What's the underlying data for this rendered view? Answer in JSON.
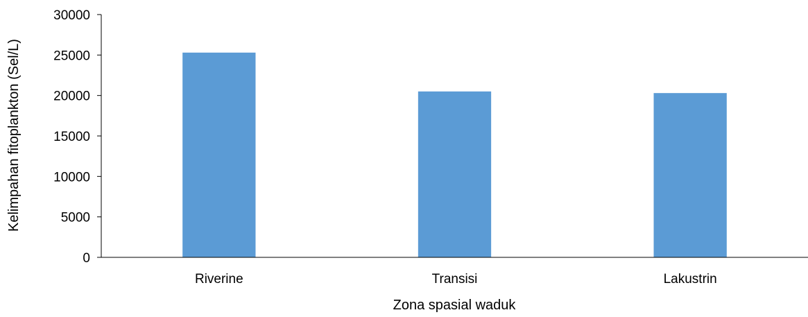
{
  "chart_data": {
    "type": "bar",
    "title": "",
    "xlabel": "Zona spasial waduk",
    "ylabel": "Kelimpahan fitoplankton (Sel/L)",
    "categories": [
      "Riverine",
      "Transisi",
      "Lakustrin"
    ],
    "values": [
      25300,
      20500,
      20300
    ],
    "ylim": [
      0,
      30000
    ],
    "yticks": [
      "0",
      "5000",
      "10000",
      "15000",
      "20000",
      "25000",
      "30000"
    ],
    "grid": false,
    "legend": "none",
    "bar_color": "#5B9BD5",
    "axis_color": "#000000"
  }
}
